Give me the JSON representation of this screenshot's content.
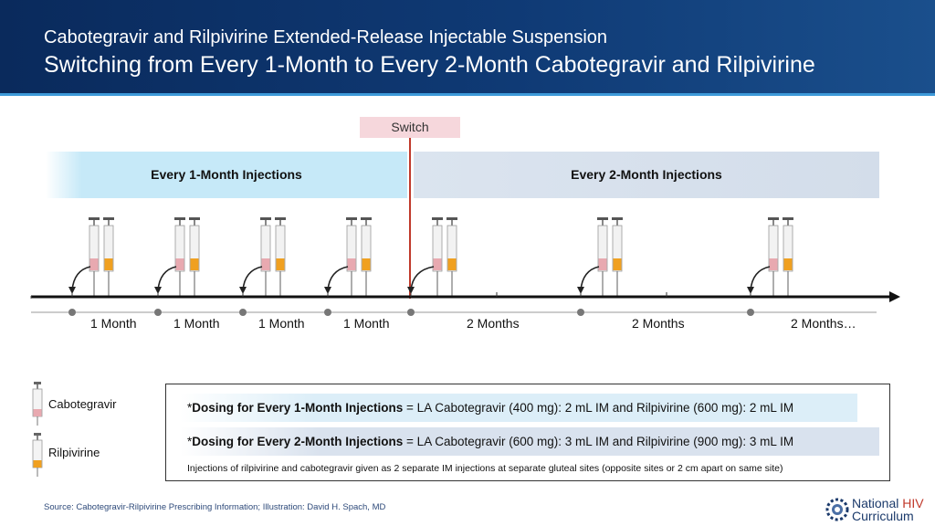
{
  "header": {
    "subtitle": "Cabotegravir and Rilpivirine Extended-Release Injectable Suspension",
    "title": "Switching from Every 1-Month to Every 2-Month Cabotegravir and Rilpivirine"
  },
  "switch_label": "Switch",
  "phases": {
    "monthly": "Every 1-Month Injections",
    "bimonthly": "Every 2-Month Injections"
  },
  "timeline": {
    "interval_labels": [
      "1 Month",
      "1 Month",
      "1 Month",
      "1 Month",
      "2 Months",
      "2 Months",
      "2 Months…"
    ]
  },
  "legend": {
    "cabotegravir": "Cabotegravir",
    "rilpivirine": "Rilpivirine"
  },
  "dosing": {
    "monthly_prefix": "*",
    "monthly_bold": "Dosing for Every 1-Month Injections",
    "monthly_text": " = LA Cabotegravir (400 mg): 2 mL IM and Rilpivirine (600 mg): 2 mL IM",
    "bimonthly_prefix": "*",
    "bimonthly_bold": "Dosing for Every 2-Month Injections",
    "bimonthly_text": " = LA Cabotegravir (600 mg): 3 mL IM and Rilpivirine (900 mg): 3 mL IM",
    "note": "Injections of rilpivirine and cabotegravir given as 2 separate IM injections at separate gluteal sites (opposite sites or 2 cm apart on same site)"
  },
  "footer": {
    "source": "Source: Cabotegravir-Rilpivirine Prescribing Information; Illustration: David H. Spach, MD",
    "logo_line1_a": "National ",
    "logo_line1_b": "HIV",
    "logo_line2": "Curriculum"
  },
  "icons": {
    "syringe_pair": "syringe-pair-icon",
    "curved_arrow": "curved-arrow-icon",
    "logo": "gear-logo-icon"
  },
  "colors": {
    "header_bg": "#0f3a75",
    "switch_line": "#c0392b",
    "cabotegravir_liquid": "#e8a9b0",
    "rilpivirine_liquid": "#f0a020"
  }
}
